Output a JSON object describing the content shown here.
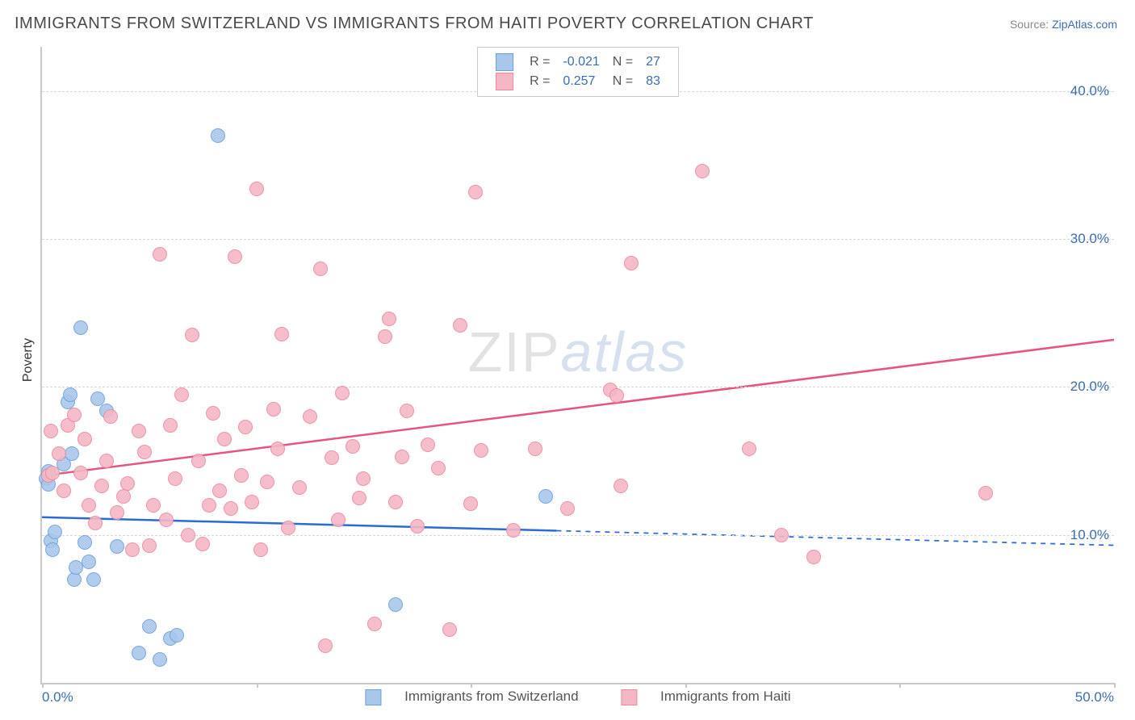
{
  "title": "IMMIGRANTS FROM SWITZERLAND VS IMMIGRANTS FROM HAITI POVERTY CORRELATION CHART",
  "source_label": "Source: ",
  "source_name": "ZipAtlas.com",
  "ylabel": "Poverty",
  "watermark_a": "ZIP",
  "watermark_b": "atlas",
  "chart": {
    "type": "scatter-correlation",
    "background_color": "#ffffff",
    "grid_color": "#d8d8d8",
    "axis_color": "#c9c9c9",
    "tick_label_color": "#3b6db0",
    "xlim": [
      0,
      50
    ],
    "ylim": [
      0,
      43
    ],
    "x_ticks_pct": [
      0,
      10,
      20,
      30,
      40,
      50
    ],
    "x_tick_labels": {
      "0": "0.0%",
      "50": "50.0%"
    },
    "y_gridlines_pct": [
      10,
      20,
      30,
      40
    ],
    "y_tick_labels": {
      "10": "10.0%",
      "20": "20.0%",
      "30": "30.0%",
      "40": "40.0%"
    },
    "point_radius": 9,
    "point_border_width": 1.5,
    "point_fill_opacity": 0.35,
    "series": [
      {
        "name": "Immigrants from Switzerland",
        "color_fill": "#a9c7ea",
        "color_stroke": "#6fa0d8",
        "legend_R": "-0.021",
        "legend_N": "27",
        "trend": {
          "color": "#2b6bd4",
          "width": 2.5,
          "y_at_x0": 11.2,
          "y_at_x50": 9.3,
          "solid_until_x": 24
        },
        "points": [
          [
            0.2,
            13.8
          ],
          [
            0.3,
            13.4
          ],
          [
            0.3,
            14.3
          ],
          [
            0.4,
            9.6
          ],
          [
            0.5,
            9.0
          ],
          [
            0.6,
            10.2
          ],
          [
            1.0,
            14.8
          ],
          [
            1.2,
            19.0
          ],
          [
            1.3,
            19.5
          ],
          [
            1.4,
            15.5
          ],
          [
            1.5,
            7.0
          ],
          [
            1.6,
            7.8
          ],
          [
            1.8,
            24.0
          ],
          [
            2.0,
            9.5
          ],
          [
            2.2,
            8.2
          ],
          [
            2.4,
            7.0
          ],
          [
            2.6,
            19.2
          ],
          [
            3.0,
            18.4
          ],
          [
            3.5,
            9.2
          ],
          [
            4.5,
            2.0
          ],
          [
            5.0,
            3.8
          ],
          [
            5.5,
            1.6
          ],
          [
            6.0,
            3.0
          ],
          [
            6.3,
            3.2
          ],
          [
            8.2,
            37.0
          ],
          [
            16.5,
            5.3
          ],
          [
            23.5,
            12.6
          ]
        ]
      },
      {
        "name": "Immigrants from Haiti",
        "color_fill": "#f4b8c5",
        "color_stroke": "#e98aa3",
        "legend_R": "0.257",
        "legend_N": "83",
        "trend": {
          "color": "#e5567f",
          "width": 2.5,
          "y_at_x0": 14.0,
          "y_at_x50": 23.2,
          "solid_until_x": 50
        },
        "points": [
          [
            0.3,
            14.0
          ],
          [
            0.4,
            17.0
          ],
          [
            0.5,
            14.2
          ],
          [
            0.8,
            15.5
          ],
          [
            1.0,
            13.0
          ],
          [
            1.2,
            17.4
          ],
          [
            1.5,
            18.1
          ],
          [
            1.8,
            14.2
          ],
          [
            2.0,
            16.5
          ],
          [
            2.2,
            12.0
          ],
          [
            2.5,
            10.8
          ],
          [
            2.8,
            13.3
          ],
          [
            3.0,
            15.0
          ],
          [
            3.2,
            18.0
          ],
          [
            3.5,
            11.5
          ],
          [
            3.8,
            12.6
          ],
          [
            4.0,
            13.5
          ],
          [
            4.2,
            9.0
          ],
          [
            4.5,
            17.0
          ],
          [
            4.8,
            15.6
          ],
          [
            5.0,
            9.3
          ],
          [
            5.2,
            12.0
          ],
          [
            5.5,
            29.0
          ],
          [
            5.8,
            11.0
          ],
          [
            6.0,
            17.4
          ],
          [
            6.2,
            13.8
          ],
          [
            6.5,
            19.5
          ],
          [
            6.8,
            10.0
          ],
          [
            7.0,
            23.5
          ],
          [
            7.3,
            15.0
          ],
          [
            7.5,
            9.4
          ],
          [
            7.8,
            12.0
          ],
          [
            8.0,
            18.2
          ],
          [
            8.3,
            13.0
          ],
          [
            8.5,
            16.5
          ],
          [
            8.8,
            11.8
          ],
          [
            9.0,
            28.8
          ],
          [
            9.3,
            14.0
          ],
          [
            9.5,
            17.3
          ],
          [
            9.8,
            12.2
          ],
          [
            10.0,
            33.4
          ],
          [
            10.2,
            9.0
          ],
          [
            10.5,
            13.6
          ],
          [
            10.8,
            18.5
          ],
          [
            11.0,
            15.8
          ],
          [
            11.2,
            23.6
          ],
          [
            11.5,
            10.5
          ],
          [
            12.0,
            13.2
          ],
          [
            12.5,
            18.0
          ],
          [
            13.0,
            28.0
          ],
          [
            13.2,
            2.5
          ],
          [
            13.5,
            15.2
          ],
          [
            13.8,
            11.0
          ],
          [
            14.0,
            19.6
          ],
          [
            14.5,
            16.0
          ],
          [
            14.8,
            12.5
          ],
          [
            15.0,
            13.8
          ],
          [
            15.5,
            4.0
          ],
          [
            16.0,
            23.4
          ],
          [
            16.2,
            24.6
          ],
          [
            16.5,
            12.2
          ],
          [
            16.8,
            15.3
          ],
          [
            17.0,
            18.4
          ],
          [
            17.5,
            10.6
          ],
          [
            18.0,
            16.1
          ],
          [
            18.5,
            14.5
          ],
          [
            19.0,
            3.6
          ],
          [
            19.5,
            24.2
          ],
          [
            20.0,
            12.1
          ],
          [
            20.2,
            33.2
          ],
          [
            20.5,
            15.7
          ],
          [
            22.0,
            10.3
          ],
          [
            23.0,
            15.8
          ],
          [
            24.5,
            11.8
          ],
          [
            26.5,
            19.8
          ],
          [
            26.8,
            19.4
          ],
          [
            27.0,
            13.3
          ],
          [
            27.5,
            28.4
          ],
          [
            30.8,
            34.6
          ],
          [
            33.0,
            15.8
          ],
          [
            34.5,
            10.0
          ],
          [
            36.0,
            8.5
          ],
          [
            44.0,
            12.8
          ]
        ]
      }
    ]
  },
  "legend": {
    "R_label": "R =",
    "N_label": "N =",
    "series_a_label": "Immigrants from Switzerland",
    "series_b_label": "Immigrants from Haiti"
  }
}
